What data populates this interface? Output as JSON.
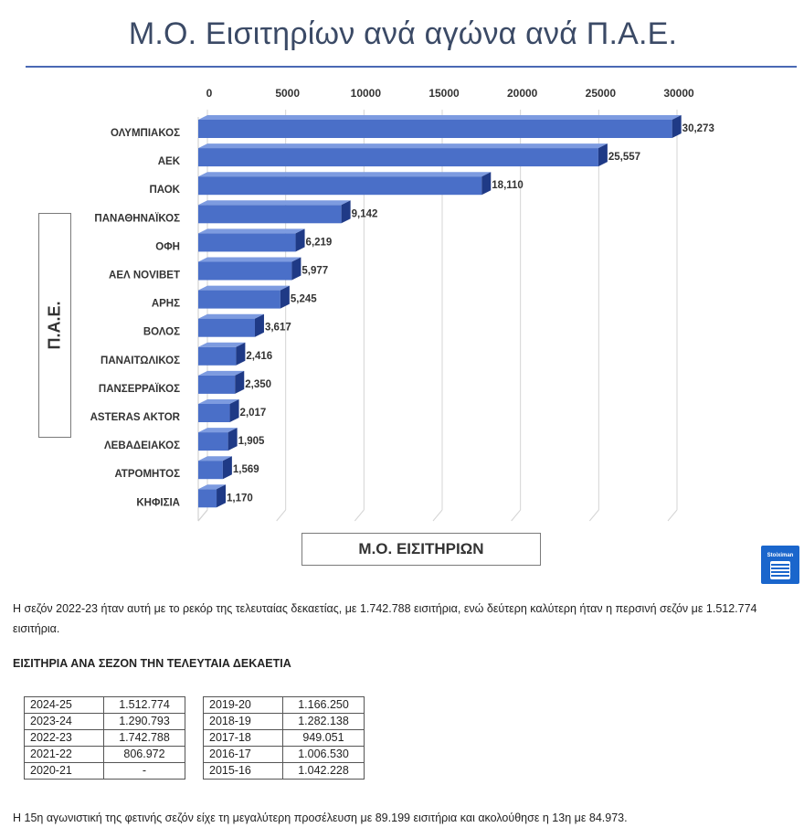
{
  "chart_data": {
    "type": "bar",
    "orientation": "horizontal",
    "title": "Μ.Ο. Εισιτηρίων ανά αγώνα ανά Π.Α.Ε.",
    "xlabel": "Μ.Ο. ΕΙΣΙΤΗΡΙΩΝ",
    "ylabel": "Π.Α.Ε.",
    "xlim": [
      0,
      30000
    ],
    "xticks": [
      "0",
      "5000",
      "10000",
      "15000",
      "20000",
      "25000",
      "30000"
    ],
    "categories": [
      "ΟΛΥΜΠΙΑΚΟΣ",
      "ΑΕΚ",
      "ΠΑΟΚ",
      "ΠΑΝΑΘΗΝΑΪΚΟΣ",
      "ΟΦΗ",
      "ΑΕΛ NOVIBET",
      "ΑΡΗΣ",
      "ΒΟΛΟΣ",
      "ΠΑΝΑΙΤΩΛΙΚΟΣ",
      "ΠΑΝΣΕΡΡΑΪΚΟΣ",
      "ASTERAS AKTOR",
      "ΛΕΒΑΔΕΙΑΚΟΣ",
      "ΑΤΡΟΜΗΤΟΣ",
      "ΚΗΦΙΣΙΑ"
    ],
    "values": [
      30273,
      25557,
      18110,
      9142,
      6219,
      5977,
      5245,
      3617,
      2416,
      2350,
      2017,
      1905,
      1569,
      1170
    ],
    "data_labels": [
      "30,273",
      "25,557",
      "18,110",
      "9,142",
      "6,219",
      "5,977",
      "5,245",
      "3,617",
      "2,416",
      "2,350",
      "2,017",
      "1,905",
      "1,569",
      "1,170"
    ],
    "grid": true,
    "legend": "none"
  },
  "colors": {
    "bar_front": "#4a6fc8",
    "bar_top": "#7d9be0",
    "bar_side": "#1f3a86",
    "title_color": "#3b4a66",
    "rule_color": "#4a69b4",
    "logo_bg": "#1a66cc"
  },
  "logo": {
    "text": "Stoiximan",
    "icon": "stoiximan-logo-icon"
  },
  "article": {
    "para_1": "Η σεζόν 2022-23 ήταν αυτή με το ρεκόρ της τελευταίας δεκαετίας, με 1.742.788 εισιτήρια, ενώ δεύτερη καλύτερη ήταν η περσινή σεζόν με 1.512.774 εισιτήρια.",
    "table_heading": "ΕΙΣΙΤΗΡΙΑ ΑΝΑ ΣΕΖΟΝ ΤΗΝ ΤΕΛΕΥΤΑΙΑ ΔΕΚΑΕΤΙΑ",
    "table_left": [
      {
        "season": "2024-25",
        "tickets": "1.512.774"
      },
      {
        "season": "2023-24",
        "tickets": "1.290.793"
      },
      {
        "season": "2022-23",
        "tickets": "1.742.788"
      },
      {
        "season": "2021-22",
        "tickets": "806.972"
      },
      {
        "season": "2020-21",
        "tickets": "-"
      }
    ],
    "table_right": [
      {
        "season": "2019-20",
        "tickets": "1.166.250"
      },
      {
        "season": "2018-19",
        "tickets": "1.282.138"
      },
      {
        "season": "2017-18",
        "tickets": "949.051"
      },
      {
        "season": "2016-17",
        "tickets": "1.006.530"
      },
      {
        "season": "2015-16",
        "tickets": "1.042.228"
      }
    ],
    "para_2": "Η 15η αγωνιστική της φετινής σεζόν είχε τη μεγαλύτερη προσέλευση με 89.199 εισιτήρια και ακολούθησε η 13η με 84.973."
  }
}
